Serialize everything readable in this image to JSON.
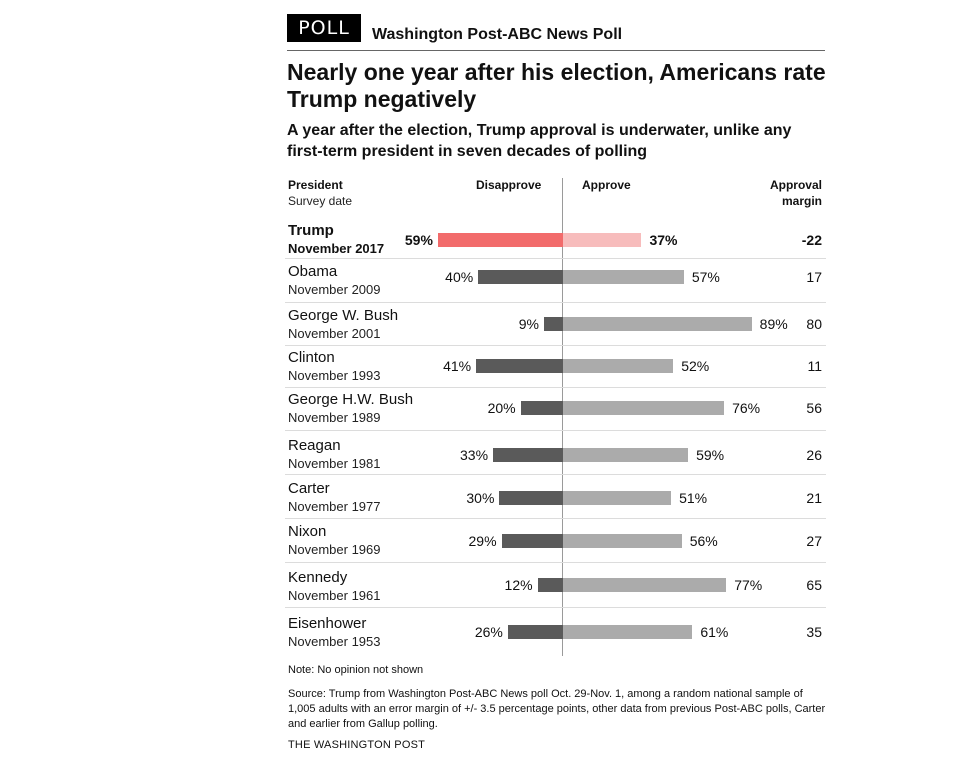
{
  "badge": "POLL",
  "poll_name": "Washington Post-ABC News Poll",
  "headline": "Nearly one year after his election, Americans rate Trump negatively",
  "subtitle": "A year after the election, Trump approval is underwater, unlike any first-term president in seven decades of polling",
  "columns": {
    "president": "President",
    "survey_date": "Survey date",
    "disapprove": "Disapprove",
    "approve": "Approve",
    "margin_line1": "Approval",
    "margin_line2": "margin"
  },
  "colors": {
    "disapprove": "#5a5a5a",
    "approve": "#ababab",
    "highlight_disapprove": "#f26b6b",
    "highlight_approve": "#f7bcbc"
  },
  "chart_data": {
    "type": "bar",
    "orientation": "horizontal-diverging",
    "categories": [
      "Trump",
      "Obama",
      "George W. Bush",
      "Clinton",
      "George H.W. Bush",
      "Reagan",
      "Carter",
      "Nixon",
      "Kennedy",
      "Eisenhower"
    ],
    "survey_dates": [
      "November 2017",
      "November 2009",
      "November 2001",
      "November 1993",
      "November 1989",
      "November 1981",
      "November 1977",
      "November 1969",
      "November 1961",
      "November 1953"
    ],
    "series": [
      {
        "name": "Disapprove",
        "values": [
          59,
          40,
          9,
          41,
          20,
          33,
          30,
          29,
          12,
          26
        ]
      },
      {
        "name": "Approve",
        "values": [
          37,
          57,
          89,
          52,
          76,
          59,
          51,
          56,
          77,
          61
        ]
      }
    ],
    "labels_disapprove": [
      "59%",
      "40%",
      "9%",
      "41%",
      "20%",
      "33%",
      "30%",
      "29%",
      "12%",
      "26%"
    ],
    "labels_approve": [
      "37%",
      "57%",
      "89%",
      "52%",
      "76%",
      "59%",
      "51%",
      "56%",
      "77%",
      "61%"
    ],
    "approval_margin": [
      "-22",
      "17",
      "80",
      "11",
      "56",
      "26",
      "21",
      "27",
      "65",
      "35"
    ],
    "highlight_index": 0,
    "xlim": [
      0,
      100
    ]
  },
  "note": "Note: No opinion not shown",
  "source": "Source: Trump from Washington Post-ABC News poll Oct. 29-Nov. 1, among a random national sample of 1,005 adults with an error margin of +/- 3.5 percentage points, other data from previous Post-ABC polls, Carter and earlier from Gallup polling.",
  "credit": "THE WASHINGTON POST"
}
